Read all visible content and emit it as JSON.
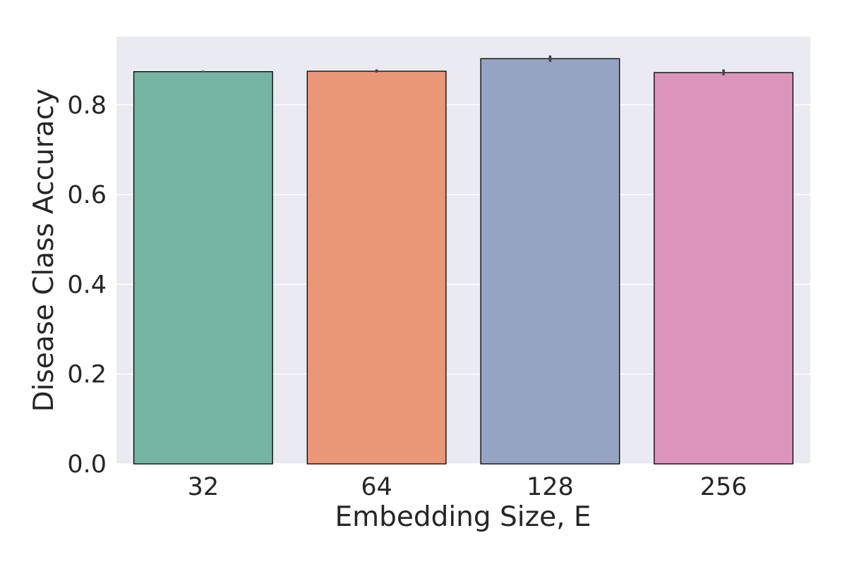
{
  "chart_data": {
    "type": "bar",
    "title": "",
    "xlabel": "Embedding Size, E",
    "ylabel": "Disease Class Accuracy",
    "categories": [
      "32",
      "64",
      "128",
      "256"
    ],
    "values": [
      0.874,
      0.875,
      0.903,
      0.872
    ],
    "error_bars": [
      [
        0.873,
        0.876
      ],
      [
        0.872,
        0.879
      ],
      [
        0.896,
        0.91
      ],
      [
        0.866,
        0.879
      ]
    ],
    "colors": [
      "#75b5a1",
      "#e99776",
      "#95a4c3",
      "#dc95bd"
    ],
    "ylim": [
      0,
      0.952
    ],
    "yticks": [
      0.0,
      0.2,
      0.4,
      0.6,
      0.8
    ],
    "ytick_labels": [
      "0.0",
      "0.2",
      "0.4",
      "0.6",
      "0.8"
    ],
    "grid": true,
    "background": "#eaeaf2"
  }
}
